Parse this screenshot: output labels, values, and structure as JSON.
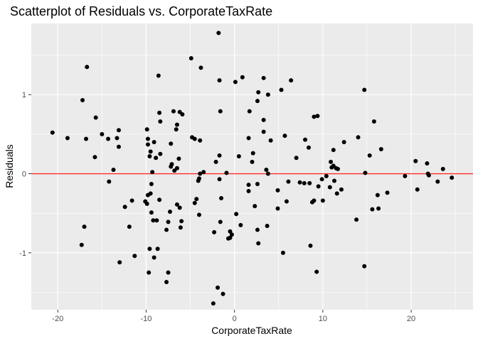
{
  "chart_data": {
    "type": "scatter",
    "title": "Scatterplot of Residuals vs. CorporateTaxRate",
    "xlabel": "CorporateTaxRate",
    "ylabel": "Residuals",
    "xlim": [
      -23,
      27
    ],
    "ylim": [
      -1.72,
      1.9
    ],
    "x_ticks": [
      -20,
      -10,
      0,
      10,
      20
    ],
    "x_tick_labels": [
      "-20",
      "-10",
      "0",
      "10",
      "20"
    ],
    "y_ticks": [
      -1,
      0,
      1
    ],
    "y_tick_labels": [
      "-1",
      "0",
      "1"
    ],
    "grid": true,
    "reference_line": {
      "y": 0,
      "color": "#ff2a2a"
    },
    "colors": {
      "panel_bg": "#ebebeb",
      "grid": "#ffffff",
      "points": "#000000"
    },
    "points": [
      {
        "x": -20.6,
        "y": 0.52
      },
      {
        "x": -18.9,
        "y": 0.45
      },
      {
        "x": -17.2,
        "y": 0.93
      },
      {
        "x": -16.7,
        "y": 1.35
      },
      {
        "x": -16.8,
        "y": 0.44
      },
      {
        "x": -17.0,
        "y": -0.67
      },
      {
        "x": -17.3,
        "y": -0.9
      },
      {
        "x": -15.7,
        "y": 0.71
      },
      {
        "x": -15.8,
        "y": 0.21
      },
      {
        "x": -15.0,
        "y": 0.5
      },
      {
        "x": -14.3,
        "y": 0.44
      },
      {
        "x": -14.2,
        "y": -0.1
      },
      {
        "x": -13.7,
        "y": 0.05
      },
      {
        "x": -13.3,
        "y": 0.45
      },
      {
        "x": -13.1,
        "y": 0.55
      },
      {
        "x": -13.1,
        "y": 0.34
      },
      {
        "x": -13.0,
        "y": -1.12
      },
      {
        "x": -12.4,
        "y": -0.42
      },
      {
        "x": -11.9,
        "y": -0.67
      },
      {
        "x": -11.6,
        "y": -0.34
      },
      {
        "x": -11.3,
        "y": -1.04
      },
      {
        "x": -9.9,
        "y": -0.38
      },
      {
        "x": -10.1,
        "y": -0.35
      },
      {
        "x": -9.9,
        "y": 0.56
      },
      {
        "x": -9.8,
        "y": 0.44
      },
      {
        "x": -9.8,
        "y": 0.37
      },
      {
        "x": -9.5,
        "y": 0.28
      },
      {
        "x": -9.6,
        "y": 0.22
      },
      {
        "x": -9.3,
        "y": 0.02
      },
      {
        "x": -9.4,
        "y": -0.13
      },
      {
        "x": -9.5,
        "y": -0.25
      },
      {
        "x": -9.4,
        "y": -0.49
      },
      {
        "x": -9.6,
        "y": -0.95
      },
      {
        "x": -9.2,
        "y": -0.59
      },
      {
        "x": -8.8,
        "y": -0.59
      },
      {
        "x": -9.7,
        "y": -1.25
      },
      {
        "x": -9.1,
        "y": -1.06
      },
      {
        "x": -9.8,
        "y": -0.27
      },
      {
        "x": -9.1,
        "y": 0.4
      },
      {
        "x": -8.9,
        "y": 0.2
      },
      {
        "x": -8.6,
        "y": 1.24
      },
      {
        "x": -8.5,
        "y": 0.77
      },
      {
        "x": -8.4,
        "y": 0.66
      },
      {
        "x": -8.4,
        "y": 0.25
      },
      {
        "x": -8.5,
        "y": -0.33
      },
      {
        "x": -8.7,
        "y": -0.95
      },
      {
        "x": -7.7,
        "y": -1.37
      },
      {
        "x": -7.5,
        "y": -1.25
      },
      {
        "x": -7.7,
        "y": -0.71
      },
      {
        "x": -7.3,
        "y": -0.48
      },
      {
        "x": -7.5,
        "y": -0.61
      },
      {
        "x": -7.2,
        "y": 0.38
      },
      {
        "x": -7.2,
        "y": 0.09
      },
      {
        "x": -7.1,
        "y": 0.12
      },
      {
        "x": -6.8,
        "y": 0.04
      },
      {
        "x": -6.9,
        "y": 0.79
      },
      {
        "x": -6.6,
        "y": 0.56
      },
      {
        "x": -6.5,
        "y": 0.62
      },
      {
        "x": -6.2,
        "y": 0.78
      },
      {
        "x": -6.3,
        "y": 0.19
      },
      {
        "x": -6.5,
        "y": 0.07
      },
      {
        "x": -6.2,
        "y": -0.43
      },
      {
        "x": -6.5,
        "y": -0.39
      },
      {
        "x": -6.0,
        "y": -0.6
      },
      {
        "x": -6.1,
        "y": -0.68
      },
      {
        "x": -5.9,
        "y": 0.75
      },
      {
        "x": -4.9,
        "y": 1.46
      },
      {
        "x": -4.8,
        "y": 0.46
      },
      {
        "x": -4.5,
        "y": 0.44
      },
      {
        "x": -4.3,
        "y": -0.32
      },
      {
        "x": -4.5,
        "y": -0.37
      },
      {
        "x": -3.8,
        "y": 1.34
      },
      {
        "x": -3.9,
        "y": 0.42
      },
      {
        "x": -4.1,
        "y": -0.09
      },
      {
        "x": -3.9,
        "y": 0.0
      },
      {
        "x": -4.0,
        "y": -0.06
      },
      {
        "x": -4.0,
        "y": -0.52
      },
      {
        "x": -3.5,
        "y": 0.02
      },
      {
        "x": -2.3,
        "y": -0.74
      },
      {
        "x": -2.4,
        "y": -1.64
      },
      {
        "x": -1.9,
        "y": -1.44
      },
      {
        "x": -2.1,
        "y": 0.15
      },
      {
        "x": -1.7,
        "y": 0.23
      },
      {
        "x": -1.7,
        "y": 1.18
      },
      {
        "x": -1.6,
        "y": 0.79
      },
      {
        "x": -1.7,
        "y": -0.07
      },
      {
        "x": -1.5,
        "y": -0.31
      },
      {
        "x": -1.6,
        "y": -0.61
      },
      {
        "x": -1.3,
        "y": -1.52
      },
      {
        "x": -1.8,
        "y": 1.78
      },
      {
        "x": -0.9,
        "y": 0.01
      },
      {
        "x": -0.7,
        "y": -0.82
      },
      {
        "x": -0.5,
        "y": -0.81
      },
      {
        "x": -0.5,
        "y": -0.73
      },
      {
        "x": -0.3,
        "y": -0.77
      },
      {
        "x": 0.1,
        "y": 1.16
      },
      {
        "x": 0.2,
        "y": -0.51
      },
      {
        "x": 0.7,
        "y": -0.65
      },
      {
        "x": 0.5,
        "y": 0.22
      },
      {
        "x": 0.9,
        "y": 1.22
      },
      {
        "x": 1.6,
        "y": -0.14
      },
      {
        "x": 1.6,
        "y": -0.22
      },
      {
        "x": 1.6,
        "y": 0.45
      },
      {
        "x": 1.7,
        "y": 0.79
      },
      {
        "x": 2.0,
        "y": 0.15
      },
      {
        "x": 2.1,
        "y": 0.26
      },
      {
        "x": 2.3,
        "y": -0.41
      },
      {
        "x": 2.6,
        "y": -0.13
      },
      {
        "x": 2.6,
        "y": -0.71
      },
      {
        "x": 2.7,
        "y": -0.88
      },
      {
        "x": 2.7,
        "y": 1.03
      },
      {
        "x": 2.6,
        "y": 0.92
      },
      {
        "x": 3.3,
        "y": 1.21
      },
      {
        "x": 3.3,
        "y": 0.68
      },
      {
        "x": 3.3,
        "y": 0.53
      },
      {
        "x": 3.6,
        "y": 0.05
      },
      {
        "x": 3.8,
        "y": 0.0
      },
      {
        "x": 3.7,
        "y": -0.66
      },
      {
        "x": 3.8,
        "y": 1.0
      },
      {
        "x": 4.1,
        "y": 0.42
      },
      {
        "x": 4.9,
        "y": -0.21
      },
      {
        "x": 4.9,
        "y": -0.44
      },
      {
        "x": 5.3,
        "y": 1.06
      },
      {
        "x": 5.5,
        "y": -1.0
      },
      {
        "x": 5.7,
        "y": 0.48
      },
      {
        "x": 5.9,
        "y": -0.35
      },
      {
        "x": 6.1,
        "y": -0.1
      },
      {
        "x": 6.4,
        "y": 1.18
      },
      {
        "x": 7.0,
        "y": 0.2
      },
      {
        "x": 7.4,
        "y": -0.11
      },
      {
        "x": 7.9,
        "y": -0.12
      },
      {
        "x": 8.0,
        "y": 0.43
      },
      {
        "x": 8.4,
        "y": 0.33
      },
      {
        "x": 8.5,
        "y": -0.12
      },
      {
        "x": 8.6,
        "y": -0.91
      },
      {
        "x": 8.8,
        "y": -0.36
      },
      {
        "x": 9.0,
        "y": -0.34
      },
      {
        "x": 9.0,
        "y": 0.72
      },
      {
        "x": 9.4,
        "y": 0.73
      },
      {
        "x": 9.3,
        "y": -1.24
      },
      {
        "x": 9.5,
        "y": -0.16
      },
      {
        "x": 9.9,
        "y": -0.07
      },
      {
        "x": 10.0,
        "y": -0.34
      },
      {
        "x": 10.4,
        "y": -0.03
      },
      {
        "x": 10.8,
        "y": -0.17
      },
      {
        "x": 10.9,
        "y": 0.15
      },
      {
        "x": 11.0,
        "y": 0.08
      },
      {
        "x": 11.2,
        "y": 0.3
      },
      {
        "x": 11.2,
        "y": 0.1
      },
      {
        "x": 11.3,
        "y": -0.09
      },
      {
        "x": 11.5,
        "y": 0.07
      },
      {
        "x": 11.7,
        "y": 0.06
      },
      {
        "x": 11.6,
        "y": -0.25
      },
      {
        "x": 12.1,
        "y": -0.2
      },
      {
        "x": 12.4,
        "y": 0.4
      },
      {
        "x": 13.8,
        "y": -0.58
      },
      {
        "x": 14.0,
        "y": 0.46
      },
      {
        "x": 14.7,
        "y": 1.06
      },
      {
        "x": 14.8,
        "y": 0.01
      },
      {
        "x": 14.7,
        "y": -1.17
      },
      {
        "x": 15.3,
        "y": 0.23
      },
      {
        "x": 15.6,
        "y": -0.45
      },
      {
        "x": 15.8,
        "y": 0.66
      },
      {
        "x": 16.2,
        "y": -0.27
      },
      {
        "x": 16.3,
        "y": -0.44
      },
      {
        "x": 16.6,
        "y": 0.31
      },
      {
        "x": 17.3,
        "y": -0.24
      },
      {
        "x": 19.3,
        "y": -0.03
      },
      {
        "x": 20.5,
        "y": 0.16
      },
      {
        "x": 20.7,
        "y": -0.2
      },
      {
        "x": 21.8,
        "y": 0.13
      },
      {
        "x": 21.9,
        "y": 0.0
      },
      {
        "x": 22.0,
        "y": -0.02
      },
      {
        "x": 23.0,
        "y": -0.1
      },
      {
        "x": 23.6,
        "y": 0.06
      },
      {
        "x": 24.6,
        "y": -0.05
      }
    ]
  }
}
